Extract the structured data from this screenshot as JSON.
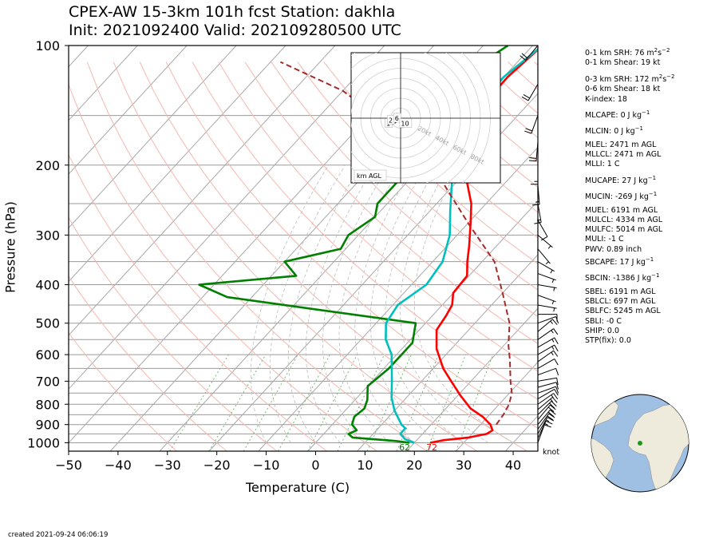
{
  "header": {
    "title_line1": "CPEX-AW 15-3km  101h fcst  Station: dakhla",
    "title_line2": "Init: 2021092400  Valid: 202109280500 UTC"
  },
  "chart_data": [
    {
      "type": "line",
      "subtype": "skew-t log-p",
      "xlabel": "Temperature (C)",
      "ylabel": "Pressure (hPa)",
      "x_ticks": [
        -50,
        -40,
        -30,
        -20,
        -10,
        0,
        10,
        20,
        30,
        40
      ],
      "y_ticks": [
        100,
        200,
        300,
        400,
        500,
        600,
        700,
        800,
        900,
        1000
      ],
      "xlim": [
        -50,
        45
      ],
      "ylim": [
        1050,
        100
      ],
      "y_scale": "log",
      "grid": true,
      "wind_unit_label": "knot",
      "surface_dewpoint_label": "62",
      "surface_temp_label": "72",
      "series": [
        {
          "role": "temperature",
          "color": "#ff0000",
          "points": [
            [
              23.2,
              1000
            ],
            [
              25.5,
              985
            ],
            [
              30,
              970
            ],
            [
              33,
              950
            ],
            [
              33.5,
              930
            ],
            [
              32,
              900
            ],
            [
              29,
              860
            ],
            [
              25,
              820
            ],
            [
              20.5,
              760
            ],
            [
              16,
              700
            ],
            [
              12,
              650
            ],
            [
              7,
              580
            ],
            [
              3.5,
              520
            ],
            [
              2.8,
              480
            ],
            [
              2,
              450
            ],
            [
              0,
              420
            ],
            [
              -0.4,
              380
            ],
            [
              -3,
              350
            ],
            [
              -5.5,
              320
            ],
            [
              -9.5,
              280
            ],
            [
              -13,
              250
            ],
            [
              -18,
              220
            ],
            [
              -22,
              190
            ],
            [
              -27,
              160
            ],
            [
              -29,
              140
            ],
            [
              -29.2,
              120
            ],
            [
              -28,
              100
            ]
          ]
        },
        {
          "role": "dewpoint",
          "color": "#008000",
          "points": [
            [
              19,
              1000
            ],
            [
              16,
              990
            ],
            [
              6.5,
              970
            ],
            [
              5,
              950
            ],
            [
              6,
              930
            ],
            [
              4,
              900
            ],
            [
              3,
              860
            ],
            [
              3.5,
              820
            ],
            [
              2.5,
              780
            ],
            [
              0,
              720
            ],
            [
              1,
              650
            ],
            [
              1,
              560
            ],
            [
              -2,
              500
            ],
            [
              -45,
              430
            ],
            [
              -53,
              400
            ],
            [
              -35,
              380
            ],
            [
              -40,
              350
            ],
            [
              -31,
              325
            ],
            [
              -32,
              300
            ],
            [
              -30,
              270
            ],
            [
              -32,
              250
            ],
            [
              -32,
              220
            ],
            [
              -33,
              200
            ],
            [
              -33,
              170
            ],
            [
              -34,
              140
            ],
            [
              -38,
              120
            ],
            [
              -36,
              105
            ],
            [
              -35,
              100
            ]
          ]
        },
        {
          "role": "wet-bulb",
          "color": "#00bfbf",
          "points": [
            [
              20,
              1000
            ],
            [
              17.5,
              980
            ],
            [
              15.5,
              950
            ],
            [
              15.5,
              920
            ],
            [
              14,
              900
            ],
            [
              10,
              830
            ],
            [
              7,
              770
            ],
            [
              4,
              700
            ],
            [
              -1,
              600
            ],
            [
              -5,
              550
            ],
            [
              -8,
              500
            ],
            [
              -9,
              450
            ],
            [
              -7,
              400
            ],
            [
              -8,
              350
            ],
            [
              -11.5,
              300
            ],
            [
              -16,
              260
            ],
            [
              -21,
              220
            ],
            [
              -26,
              180
            ],
            [
              -29.5,
              150
            ],
            [
              -30,
              120
            ],
            [
              -28,
              100
            ]
          ]
        },
        {
          "role": "parcel",
          "color": "#a52a2a",
          "dashed": true,
          "points": [
            [
              33.2,
              900
            ],
            [
              32.8,
              850
            ],
            [
              32,
              800
            ],
            [
              30.5,
              750
            ],
            [
              28,
              700
            ],
            [
              24,
              620
            ],
            [
              21,
              570
            ],
            [
              17,
              500
            ],
            [
              10,
              420
            ],
            [
              2.5,
              350
            ],
            [
              -10,
              280
            ],
            [
              -23,
              220
            ],
            [
              -39,
              170
            ],
            [
              -60,
              130
            ],
            [
              -78,
              110
            ]
          ]
        }
      ]
    },
    {
      "type": "line",
      "subtype": "hodograph",
      "ring_labels": [
        "20kt",
        "40kt",
        "60kt",
        "80kt"
      ],
      "height_labels": [
        "1",
        "2",
        "6",
        "10"
      ],
      "legend": "km AGL",
      "points_kt": [
        [
          -24,
          -13
        ],
        [
          -17,
          -12
        ],
        [
          -9,
          -8
        ],
        [
          -5,
          -3
        ],
        [
          -13,
          2
        ],
        [
          -11,
          4
        ],
        [
          -6,
          7
        ],
        [
          -7,
          9
        ],
        [
          -6,
          5
        ],
        [
          -5,
          0
        ],
        [
          -3,
          -6
        ],
        [
          1,
          -8
        ],
        [
          5,
          -5
        ],
        [
          10,
          -4
        ],
        [
          12,
          -8
        ],
        [
          15,
          -10
        ],
        [
          17,
          -9
        ],
        [
          13,
          -7
        ],
        [
          10,
          -6
        ]
      ],
      "label_positions_kt": [
        [
          -16,
          -8
        ],
        [
          -13,
          -3
        ],
        [
          -5,
          0
        ],
        [
          3,
          -8
        ]
      ]
    }
  ],
  "wind_barbs": [
    {
      "p": 1000,
      "dir": 20,
      "spd": 10
    },
    {
      "p": 975,
      "dir": 25,
      "spd": 15
    },
    {
      "p": 950,
      "dir": 30,
      "spd": 18
    },
    {
      "p": 925,
      "dir": 35,
      "spd": 20
    },
    {
      "p": 900,
      "dir": 40,
      "spd": 22
    },
    {
      "p": 875,
      "dir": 40,
      "spd": 22
    },
    {
      "p": 850,
      "dir": 45,
      "spd": 20
    },
    {
      "p": 825,
      "dir": 50,
      "spd": 18
    },
    {
      "p": 800,
      "dir": 55,
      "spd": 15
    },
    {
      "p": 775,
      "dir": 60,
      "spd": 12
    },
    {
      "p": 750,
      "dir": 70,
      "spd": 12
    },
    {
      "p": 725,
      "dir": 75,
      "spd": 10
    },
    {
      "p": 700,
      "dir": 80,
      "spd": 12
    },
    {
      "p": 675,
      "dir": 70,
      "spd": 12
    },
    {
      "p": 650,
      "dir": 60,
      "spd": 13
    },
    {
      "p": 625,
      "dir": 55,
      "spd": 15
    },
    {
      "p": 600,
      "dir": 60,
      "spd": 15
    },
    {
      "p": 575,
      "dir": 60,
      "spd": 15
    },
    {
      "p": 550,
      "dir": 55,
      "spd": 15
    },
    {
      "p": 525,
      "dir": 50,
      "spd": 15
    },
    {
      "p": 500,
      "dir": 70,
      "spd": 12
    },
    {
      "p": 475,
      "dir": 90,
      "spd": 10
    },
    {
      "p": 450,
      "dir": 100,
      "spd": 8
    },
    {
      "p": 425,
      "dir": 110,
      "spd": 5
    },
    {
      "p": 400,
      "dir": 100,
      "spd": 5
    },
    {
      "p": 375,
      "dir": 110,
      "spd": 5
    },
    {
      "p": 350,
      "dir": 120,
      "spd": 5
    },
    {
      "p": 325,
      "dir": 140,
      "spd": 5
    },
    {
      "p": 300,
      "dir": 130,
      "spd": 5
    },
    {
      "p": 275,
      "dir": 150,
      "spd": 12
    },
    {
      "p": 250,
      "dir": 170,
      "spd": 15
    },
    {
      "p": 225,
      "dir": 175,
      "spd": 15
    },
    {
      "p": 200,
      "dir": 180,
      "spd": 18
    },
    {
      "p": 175,
      "dir": 185,
      "spd": 20
    },
    {
      "p": 150,
      "dir": 200,
      "spd": 22
    },
    {
      "p": 125,
      "dir": 210,
      "spd": 22
    },
    {
      "p": 100,
      "dir": 220,
      "spd": 20
    }
  ],
  "parameters": [
    {
      "text": "0-1 km SRH: 76 m",
      "sup": "2",
      "mid": "s",
      "sup2": "−2"
    },
    {
      "text": "0-1 km Shear: 19 kt"
    },
    {
      "text": "0-3 km SRH: 172 m",
      "sup": "2",
      "mid": "s",
      "sup2": "−2",
      "gap": true
    },
    {
      "text": "0-6 km Shear: 18 kt"
    },
    {
      "text": "K-index: 18"
    },
    {
      "text": "MLCAPE: 0 J kg",
      "sup2": "−1",
      "gap": true
    },
    {
      "text": "MLCIN: 0 J kg",
      "sup2": "−1",
      "gap": true
    },
    {
      "text": "MLEL: 2471 m AGL",
      "gap": true
    },
    {
      "text": "MLLCL: 2471 m AGL"
    },
    {
      "text": "MLLI: 1 C"
    },
    {
      "text": "MUCAPE: 27 J kg",
      "sup2": "−1",
      "gap": true
    },
    {
      "text": "MUCIN: -269 J kg",
      "sup2": "−1",
      "gap": true
    },
    {
      "text": "MUEL: 6191 m AGL",
      "gap": true
    },
    {
      "text": "MULCL: 4334 m AGL"
    },
    {
      "text": "MULFC: 5014 m AGL"
    },
    {
      "text": "MULI: -1 C"
    },
    {
      "text": "PWV: 0.89 inch"
    },
    {
      "text": "SBCAPE: 17 J kg",
      "sup2": "−1"
    },
    {
      "text": "SBCIN: -1386 J kg",
      "sup2": "−1",
      "gap": true
    },
    {
      "text": "SBEL: 6191 m AGL",
      "gap": true
    },
    {
      "text": "SBLCL: 697 m AGL"
    },
    {
      "text": "SBLFC: 5245 m AGL"
    },
    {
      "text": "SBLI: -0 C"
    },
    {
      "text": "SHIP: 0.0"
    },
    {
      "text": "STP(fix): 0.0"
    }
  ],
  "footer": {
    "created": "created 2021-09-24 06:06:19"
  },
  "globe": {
    "station_lat": 23.7,
    "station_lon": -15.9,
    "ocean_color": "#9fbfe3",
    "land_color": "#efebdc",
    "marker_color": "#1a9a1a"
  },
  "colors": {
    "temperature": "#ff0000",
    "dewpoint": "#008000",
    "wetbulb": "#00bfbf",
    "parcel": "#a52a2a"
  }
}
